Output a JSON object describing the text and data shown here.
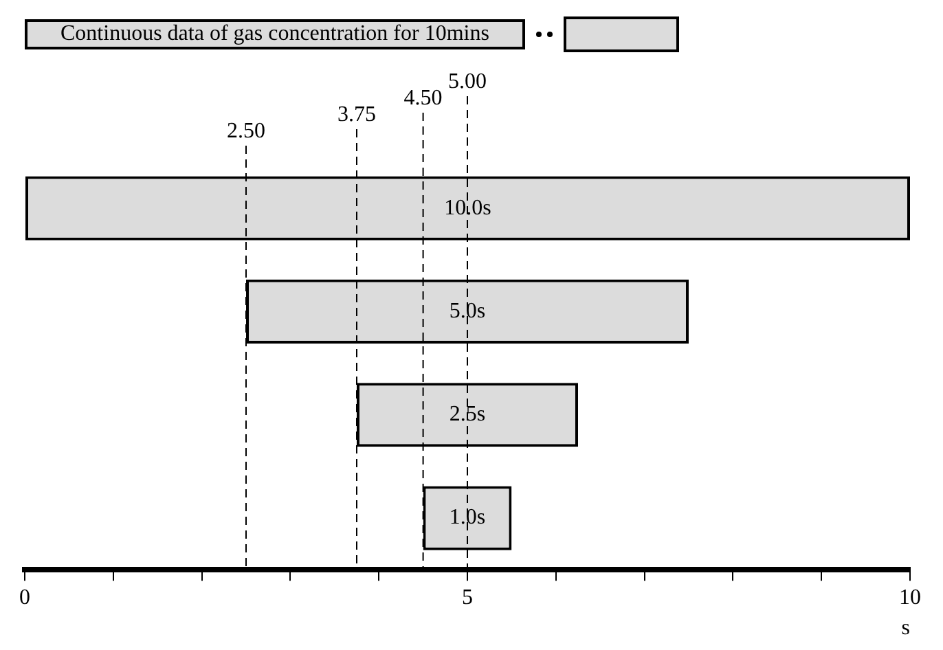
{
  "chart_data": {
    "type": "bar",
    "orientation": "horizontal",
    "annotations": [
      "Continuous data of gas concentration for 10mins"
    ],
    "categories": [
      null,
      null,
      null,
      null
    ],
    "values": [
      10,
      5,
      2.5,
      1
    ],
    "base": [
      0,
      2.5,
      3.75,
      4.5
    ],
    "value_labels": [
      "10.0s",
      "5.0s",
      "2.5s",
      "1.0s"
    ],
    "color": "#dcdcdc",
    "xlabel": "s",
    "xlim": [
      0,
      10
    ],
    "xticks": [
      0,
      {
        "value": 1,
        "label": null
      },
      {
        "value": 2,
        "label": null
      },
      {
        "value": 3,
        "label": null
      },
      {
        "value": 4,
        "label": null
      },
      5,
      {
        "value": 6,
        "label": null
      },
      {
        "value": 7,
        "label": null
      },
      {
        "value": 8,
        "label": null
      },
      {
        "value": 9,
        "label": null
      },
      10
    ],
    "ref_lines": [
      {
        "axis": "x",
        "value": 2.5,
        "label": "2.50",
        "line_style": "dashed",
        "color": "#000000"
      },
      {
        "axis": "x",
        "value": 3.75,
        "label": "3.75",
        "line_style": "dashed",
        "color": "#000000"
      },
      {
        "axis": "x",
        "value": 4.5,
        "label": "4.50",
        "line_style": "dashed",
        "color": "#000000"
      },
      {
        "axis": "x",
        "value": 5,
        "label": "5.00",
        "line_style": "dashed",
        "color": "#000000"
      }
    ],
    "grid": false,
    "legend": false
  }
}
